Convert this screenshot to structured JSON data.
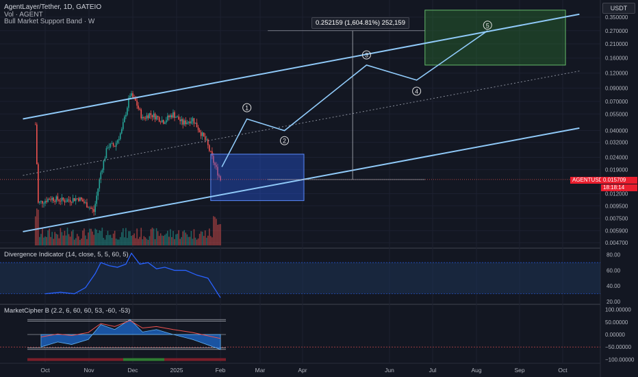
{
  "legend": {
    "title": "AgentLayer/Tether, 1D, GATEIO",
    "volume": "Vol · AGENT",
    "band": "Bull Market Support Band · W"
  },
  "currency": "USDT",
  "measure_label": "0.252159 (1,604.81%) 252,159",
  "price_tags": {
    "pair": "AGENTUSDT",
    "value": "0.015709",
    "timer": "18:18:14"
  },
  "panes": {
    "divergence": {
      "label": "Divergence Indicator (14, close, 5, 5, 60, 5)",
      "ticks": [
        "80.00",
        "60.00",
        "40.00",
        "20.00"
      ]
    },
    "marketcipher": {
      "label": "MarketCipher B (2.2, 6, 60, 60, 53, -60, -53)",
      "ticks": [
        "100.00000",
        "50.00000",
        "0.00000",
        "−50.00000",
        "−100.00000"
      ]
    }
  },
  "wave_labels": [
    "1",
    "2",
    "3",
    "4",
    "5"
  ],
  "chart_data": {
    "type": "line",
    "title": "AgentLayer/Tether, 1D, GATEIO",
    "y_scale": "log",
    "y_ticks": [
      "0.350000",
      "0.270000",
      "0.210000",
      "0.160000",
      "0.120000",
      "0.090000",
      "0.070000",
      "0.055000",
      "0.040000",
      "0.032000",
      "0.024000",
      "0.019000",
      "0.012000",
      "0.009500",
      "0.007500",
      "0.005900",
      "0.004700"
    ],
    "x_ticks": [
      "Oct",
      "Nov",
      "Dec",
      "2025",
      "Feb",
      "Mar",
      "Apr",
      "Jun",
      "Jul",
      "Aug",
      "Sep",
      "Oct"
    ],
    "last_price": 0.015709,
    "projected_gain": "0.252159 (1,604.81%)",
    "price_path": [
      {
        "t": "2024-09-24",
        "close": 0.045
      },
      {
        "t": "2024-09-26",
        "close": 0.01
      },
      {
        "t": "2024-10-05",
        "close": 0.011
      },
      {
        "t": "2024-10-15",
        "close": 0.0105
      },
      {
        "t": "2024-10-25",
        "close": 0.011
      },
      {
        "t": "2024-11-01",
        "close": 0.0095
      },
      {
        "t": "2024-11-05",
        "close": 0.0085
      },
      {
        "t": "2024-11-10",
        "close": 0.018
      },
      {
        "t": "2024-11-15",
        "close": 0.03
      },
      {
        "t": "2024-11-20",
        "close": 0.03
      },
      {
        "t": "2024-11-25",
        "close": 0.04
      },
      {
        "t": "2024-12-01",
        "close": 0.08
      },
      {
        "t": "2024-12-05",
        "close": 0.07
      },
      {
        "t": "2024-12-10",
        "close": 0.05
      },
      {
        "t": "2024-12-15",
        "close": 0.055
      },
      {
        "t": "2024-12-20",
        "close": 0.052
      },
      {
        "t": "2024-12-25",
        "close": 0.048
      },
      {
        "t": "2025-01-01",
        "close": 0.055
      },
      {
        "t": "2025-01-08",
        "close": 0.046
      },
      {
        "t": "2025-01-15",
        "close": 0.05
      },
      {
        "t": "2025-01-20",
        "close": 0.04
      },
      {
        "t": "2025-01-25",
        "close": 0.032
      },
      {
        "t": "2025-01-30",
        "close": 0.022
      },
      {
        "t": "2025-02-04",
        "close": 0.0157
      }
    ],
    "projection": [
      {
        "t": "2025-02-05",
        "price": 0.02
      },
      {
        "t": "2025-02-23",
        "price": 0.05
      },
      {
        "t": "2025-03-22",
        "price": 0.04
      },
      {
        "t": "2025-05-20",
        "price": 0.14
      },
      {
        "t": "2025-06-25",
        "price": 0.105
      },
      {
        "t": "2025-08-15",
        "price": 0.27
      }
    ],
    "channel": {
      "upper": [
        {
          "t": "2024-09-15",
          "price": 0.05
        },
        {
          "t": "2025-10-20",
          "price": 0.37
        }
      ],
      "lower": [
        {
          "t": "2024-09-15",
          "price": 0.0058
        },
        {
          "t": "2025-10-20",
          "price": 0.042
        }
      ],
      "mid": [
        {
          "t": "2024-09-15",
          "price": 0.017
        },
        {
          "t": "2025-10-20",
          "price": 0.125
        }
      ]
    },
    "boxes": [
      {
        "name": "buy-zone",
        "t1": "2025-01-28",
        "t2": "2025-04-05",
        "price_low": 0.0105,
        "price_high": 0.0255,
        "color": "#2962ff"
      },
      {
        "name": "target-zone",
        "t1": "2025-07-01",
        "t2": "2025-10-10",
        "price_low": 0.14,
        "price_high": 0.4,
        "color": "#2e7d32"
      }
    ],
    "divergence": {
      "values": [
        {
          "t": "2024-10-01",
          "v": 30
        },
        {
          "t": "2024-10-12",
          "v": 32
        },
        {
          "t": "2024-10-22",
          "v": 30
        },
        {
          "t": "2024-10-30",
          "v": 38
        },
        {
          "t": "2024-11-06",
          "v": 56
        },
        {
          "t": "2024-11-10",
          "v": 70
        },
        {
          "t": "2024-11-16",
          "v": 66
        },
        {
          "t": "2024-11-22",
          "v": 64
        },
        {
          "t": "2024-11-28",
          "v": 68
        },
        {
          "t": "2024-12-02",
          "v": 82
        },
        {
          "t": "2024-12-08",
          "v": 68
        },
        {
          "t": "2024-12-14",
          "v": 70
        },
        {
          "t": "2024-12-20",
          "v": 62
        },
        {
          "t": "2024-12-26",
          "v": 64
        },
        {
          "t": "2025-01-02",
          "v": 60
        },
        {
          "t": "2025-01-10",
          "v": 60
        },
        {
          "t": "2025-01-18",
          "v": 54
        },
        {
          "t": "2025-01-26",
          "v": 50
        },
        {
          "t": "2025-02-04",
          "v": 25
        }
      ],
      "ylim": [
        20,
        85
      ]
    },
    "marketcipher": {
      "wave": [
        {
          "t": "2024-09-28",
          "v": -50
        },
        {
          "t": "2024-10-10",
          "v": -30
        },
        {
          "t": "2024-10-20",
          "v": -40
        },
        {
          "t": "2024-11-01",
          "v": -20
        },
        {
          "t": "2024-11-10",
          "v": 40
        },
        {
          "t": "2024-11-20",
          "v": 20
        },
        {
          "t": "2024-12-01",
          "v": 60
        },
        {
          "t": "2024-12-10",
          "v": 10
        },
        {
          "t": "2024-12-20",
          "v": 20
        },
        {
          "t": "2025-01-01",
          "v": 0
        },
        {
          "t": "2025-01-15",
          "v": -20
        },
        {
          "t": "2025-01-25",
          "v": -40
        },
        {
          "t": "2025-02-04",
          "v": -60
        }
      ],
      "ylim": [
        -110,
        110
      ]
    }
  }
}
